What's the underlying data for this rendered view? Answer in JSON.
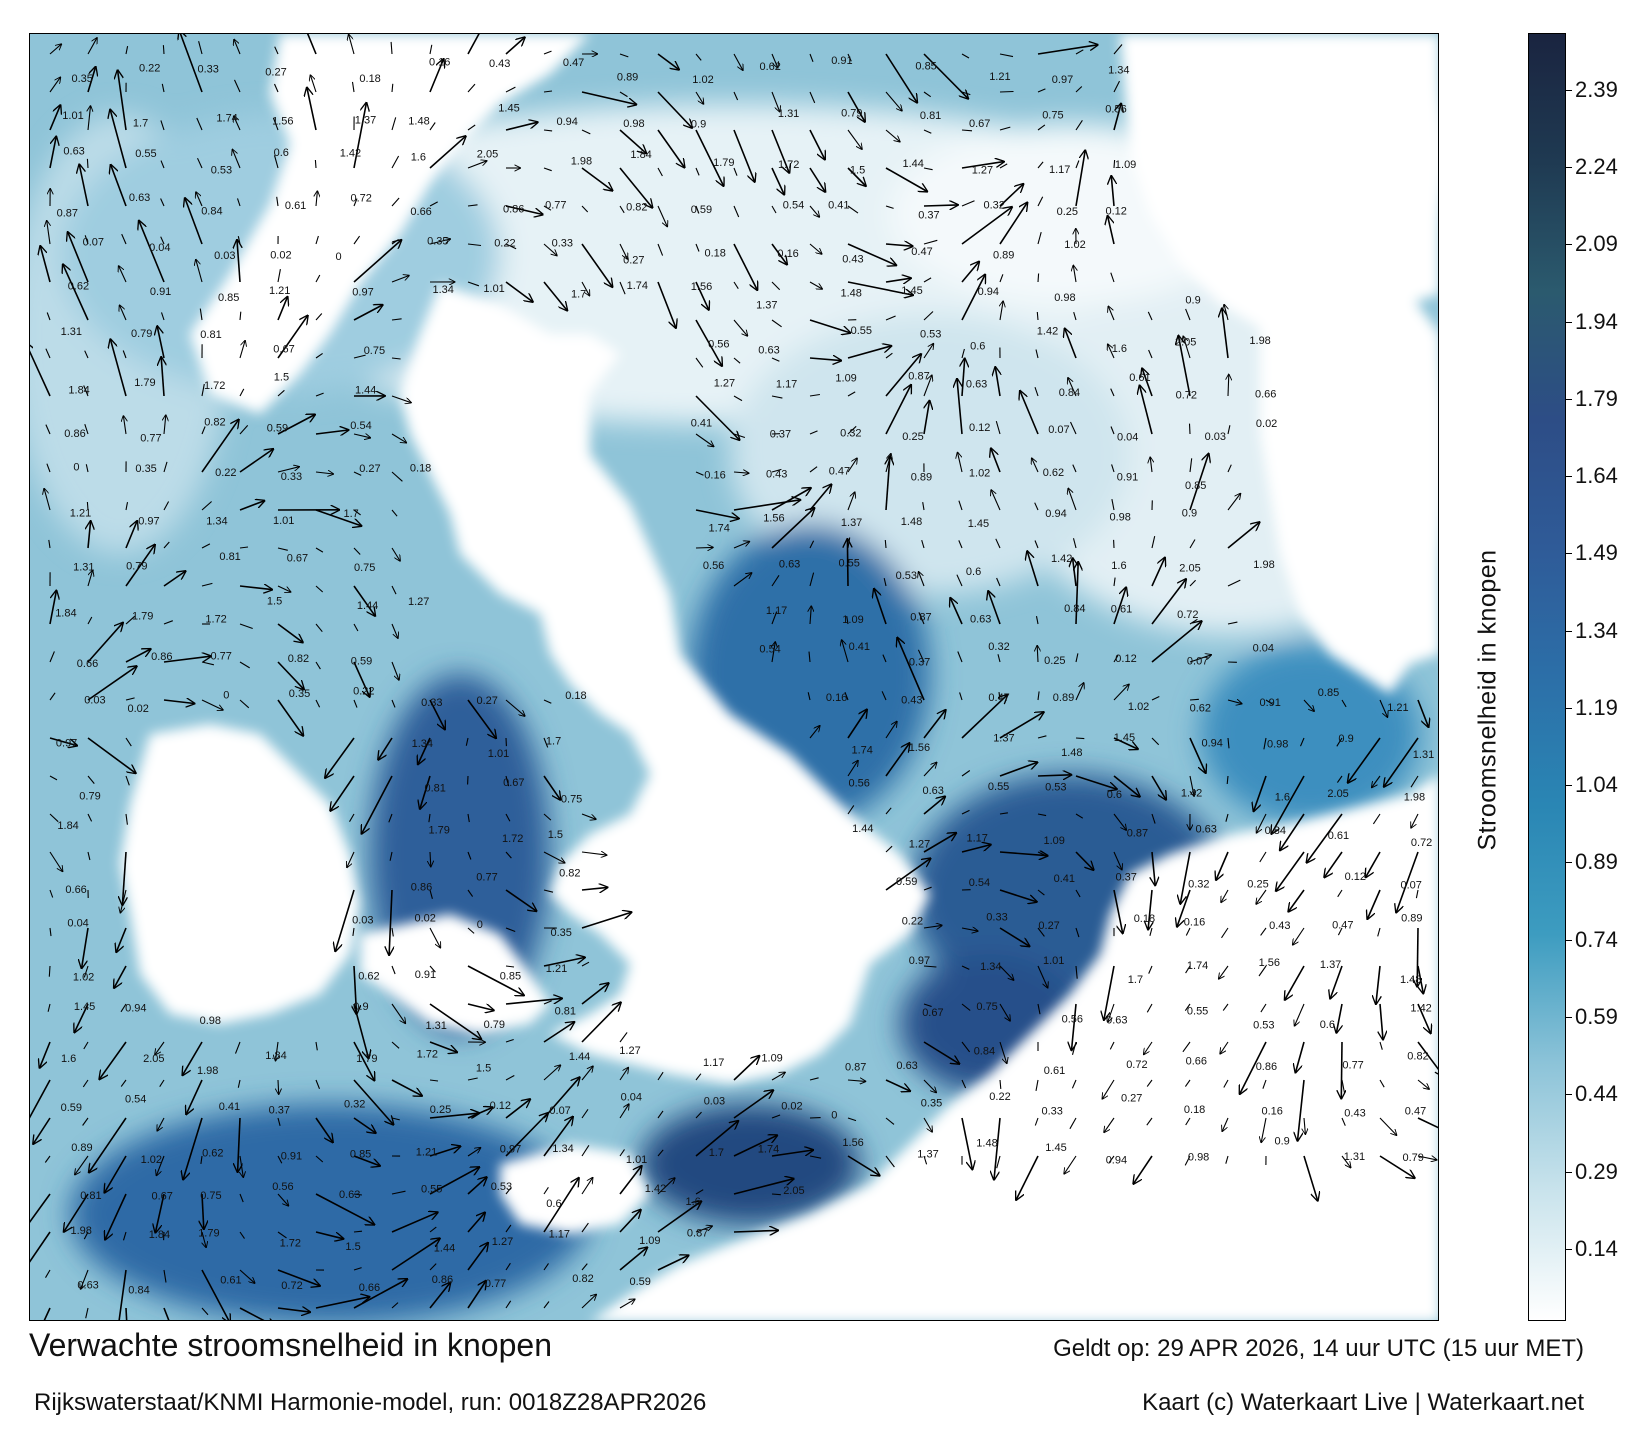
{
  "title": "Verwachte stroomsnelheid in knopen",
  "subtitle": "Rijkswaterstaat/KNMI Harmonie-model, run: 0018Z28APR2026",
  "valid_time": "Geldt op: 29 APR 2026, 14 uur UTC (15 uur MET)",
  "credit": "Kaart (c) Waterkaart Live | Waterkaart.net",
  "colorbar": {
    "label": "Stroomsnelheid in knopen",
    "ticks": [
      "2.39",
      "2.24",
      "2.09",
      "1.94",
      "1.79",
      "1.64",
      "1.49",
      "1.34",
      "1.19",
      "1.04",
      "0.89",
      "0.74",
      "0.59",
      "0.44",
      "0.29",
      "0.14"
    ],
    "range": [
      0,
      2.5
    ],
    "colors": [
      "#ffffff",
      "#c9e3ec",
      "#8cc3d8",
      "#3d9cc0",
      "#2a86b4",
      "#2c6fa8",
      "#2f5b98",
      "#2d4d86",
      "#2b5a6e",
      "#1f3a52",
      "#1a2440"
    ]
  },
  "map_labels": [
    {
      "text": "0.35",
      "value": 0.35
    },
    {
      "text": "0.22",
      "value": 0.22
    },
    {
      "text": "0.33",
      "value": 0.33
    },
    {
      "text": "0.27",
      "value": 0.27
    },
    {
      "text": "0.18",
      "value": 0.18
    },
    {
      "text": "0.16",
      "value": 0.16
    },
    {
      "text": "0.43",
      "value": 0.43
    },
    {
      "text": "0.47",
      "value": 0.47
    },
    {
      "text": "0.89",
      "value": 0.89
    },
    {
      "text": "1.02",
      "value": 1.02
    },
    {
      "text": "0.62",
      "value": 0.62
    },
    {
      "text": "0.91",
      "value": 0.91
    },
    {
      "text": "0.85",
      "value": 0.85
    },
    {
      "text": "1.21",
      "value": 1.21
    },
    {
      "text": "0.97",
      "value": 0.97
    },
    {
      "text": "1.34",
      "value": 1.34
    },
    {
      "text": "1.01",
      "value": 1.01
    },
    {
      "text": "1.7",
      "value": 1.7
    },
    {
      "text": "1.74",
      "value": 1.74
    },
    {
      "text": "1.56",
      "value": 1.56
    },
    {
      "text": "1.37",
      "value": 1.37
    },
    {
      "text": "1.48",
      "value": 1.48
    },
    {
      "text": "1.45",
      "value": 1.45
    },
    {
      "text": "0.94",
      "value": 0.94
    },
    {
      "text": "0.98",
      "value": 0.98
    },
    {
      "text": "0.9",
      "value": 0.9
    },
    {
      "text": "1.31",
      "value": 1.31
    },
    {
      "text": "0.79",
      "value": 0.79
    },
    {
      "text": "0.81",
      "value": 0.81
    },
    {
      "text": "0.67",
      "value": 0.67
    },
    {
      "text": "0.75",
      "value": 0.75
    },
    {
      "text": "0.56",
      "value": 0.56
    },
    {
      "text": "0.63",
      "value": 0.63
    },
    {
      "text": "0.55",
      "value": 0.55
    },
    {
      "text": "0.53",
      "value": 0.53
    },
    {
      "text": "0.6",
      "value": 0.6
    },
    {
      "text": "1.42",
      "value": 1.42
    },
    {
      "text": "1.6",
      "value": 1.6
    },
    {
      "text": "2.05",
      "value": 2.05
    },
    {
      "text": "1.98",
      "value": 1.98
    },
    {
      "text": "1.84",
      "value": 1.84
    },
    {
      "text": "1.79",
      "value": 1.79
    },
    {
      "text": "1.72",
      "value": 1.72
    },
    {
      "text": "1.5",
      "value": 1.5
    },
    {
      "text": "1.44",
      "value": 1.44
    },
    {
      "text": "1.27",
      "value": 1.27
    },
    {
      "text": "1.17",
      "value": 1.17
    },
    {
      "text": "1.09",
      "value": 1.09
    },
    {
      "text": "0.87",
      "value": 0.87
    },
    {
      "text": "0.63",
      "value": 0.63
    },
    {
      "text": "0.84",
      "value": 0.84
    },
    {
      "text": "0.61",
      "value": 0.61
    },
    {
      "text": "0.72",
      "value": 0.72
    },
    {
      "text": "0.66",
      "value": 0.66
    },
    {
      "text": "0.86",
      "value": 0.86
    },
    {
      "text": "0.77",
      "value": 0.77
    },
    {
      "text": "0.82",
      "value": 0.82
    },
    {
      "text": "0.59",
      "value": 0.59
    },
    {
      "text": "0.54",
      "value": 0.54
    },
    {
      "text": "0.41",
      "value": 0.41
    },
    {
      "text": "0.37",
      "value": 0.37
    },
    {
      "text": "0.32",
      "value": 0.32
    },
    {
      "text": "0.25",
      "value": 0.25
    },
    {
      "text": "0.12",
      "value": 0.12
    },
    {
      "text": "0.07",
      "value": 0.07
    },
    {
      "text": "0.04",
      "value": 0.04
    },
    {
      "text": "0.03",
      "value": 0.03
    },
    {
      "text": "0.02",
      "value": 0.02
    },
    {
      "text": "0",
      "value": 0
    }
  ]
}
